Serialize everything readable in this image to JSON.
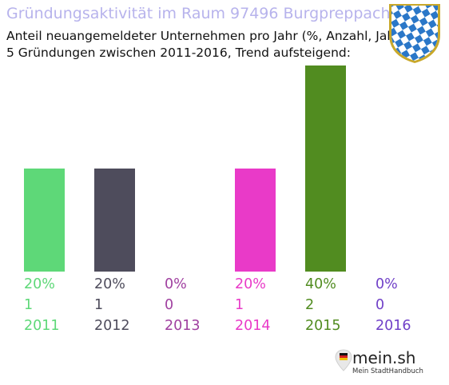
{
  "title": "Gründungsaktivität im Raum 97496 Burgpreppach",
  "subtitle_line1": "Anteil neuangemeldeter Unternehmen pro Jahr (%, Anzahl, Jahr)",
  "subtitle_line2": "5 Gründungen zwischen 2011-2016, Trend aufsteigend:",
  "crest_icon": "bavaria-coat-of-arms-icon",
  "logo": {
    "name": "mein.sh",
    "tagline": "Mein StadtHandbuch",
    "icon": "map-pin-icon"
  },
  "colors": {
    "title": "#b7b3ec"
  },
  "chart_data": {
    "type": "bar",
    "categories": [
      "2011",
      "2012",
      "2013",
      "2014",
      "2015",
      "2016"
    ],
    "values": [
      1,
      1,
      0,
      1,
      2,
      0
    ],
    "percents": [
      "20%",
      "20%",
      "0%",
      "20%",
      "40%",
      "0%"
    ],
    "counts": [
      "1",
      "1",
      "0",
      "1",
      "2",
      "0"
    ],
    "colors": [
      "#5ed878",
      "#4e4c5c",
      "#a040a0",
      "#e93ac8",
      "#518c20",
      "#7040c8"
    ],
    "ylim": [
      0,
      2
    ],
    "grid": false,
    "legend": false
  }
}
